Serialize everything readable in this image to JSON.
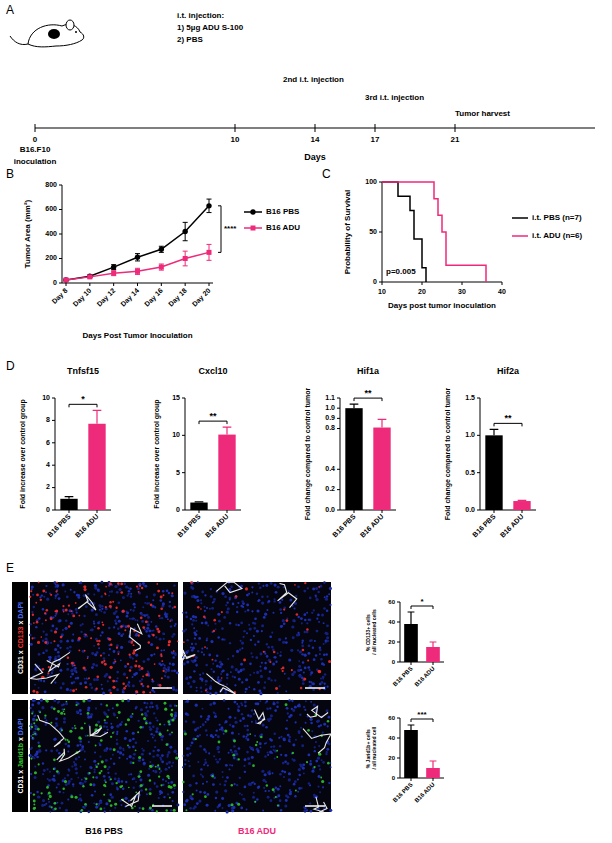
{
  "panel_labels": [
    "A",
    "B",
    "C",
    "D",
    "E"
  ],
  "timeline": {
    "xlim": [
      0,
      28
    ],
    "ticks": [
      0,
      10,
      14,
      17,
      21
    ],
    "axis_label": "Days",
    "events": [
      {
        "day": 0,
        "lines": [
          "B16.F10",
          "inoculation"
        ]
      },
      {
        "day": 10,
        "lines": [
          "i.t. injection:",
          "1) 5µg ADU S-100",
          "2) PBS"
        ]
      },
      {
        "day": 14,
        "lines": [
          "2nd i.t. injection"
        ]
      },
      {
        "day": 17,
        "lines": [
          "3rd i.t. injection"
        ]
      },
      {
        "day": 21,
        "lines": [
          "Tumor harvest"
        ]
      }
    ]
  },
  "images": {
    "rows": [
      {
        "parts": [
          "CD31",
          " x ",
          "CD133",
          " x ",
          "DAPI"
        ],
        "colors": [
          "#ffffff",
          "#ffffff",
          "#ff3030",
          "#ffffff",
          "#4a6cff"
        ]
      },
      {
        "parts": [
          "CD31",
          " x ",
          "Jarid1b",
          " x ",
          "DAPI"
        ],
        "colors": [
          "#ffffff",
          "#ffffff",
          "#30d030",
          "#ffffff",
          "#4a6cff"
        ]
      }
    ],
    "columns": [
      "B16 PBS",
      "B16 ADU"
    ],
    "column_colors": [
      "#000000",
      "#ee2a7b"
    ]
  },
  "chart_data": [
    {
      "type": "line",
      "y_label": "Tumor Area (mm²)",
      "x_label": "Days Post Tumor Inoculation",
      "categories": [
        "Day 8",
        "Day 10",
        "Day 12",
        "Day 14",
        "Day 16",
        "Day 18",
        "Day 20"
      ],
      "series": [
        {
          "name": "B16 PBS",
          "color": "#000000",
          "marker": "circle",
          "values": [
            25,
            55,
            130,
            210,
            275,
            420,
            630
          ],
          "errors": [
            5,
            10,
            20,
            30,
            25,
            75,
            55
          ]
        },
        {
          "name": "B16 ADU",
          "color": "#ee2a7b",
          "marker": "square",
          "values": [
            25,
            50,
            80,
            95,
            130,
            200,
            250
          ],
          "errors": [
            5,
            10,
            20,
            25,
            25,
            60,
            65
          ]
        }
      ],
      "ylim": [
        0,
        800
      ],
      "yticks": [
        0,
        200,
        400,
        600,
        800
      ],
      "annotations": [
        "****"
      ],
      "legend": "right"
    },
    {
      "type": "step",
      "y_label": "Probability of Survival",
      "x_label": "Days post tumor inoculation",
      "series": [
        {
          "name": "i.t. PBS (n=7)",
          "color": "#000000",
          "x": [
            10,
            14,
            17,
            18,
            20,
            21
          ],
          "values": [
            100,
            85.7,
            71.4,
            42.9,
            14.3,
            0
          ]
        },
        {
          "name": "i.t. ADU (n=6)",
          "color": "#ee2a7b",
          "x": [
            10,
            23,
            24,
            25,
            26,
            36
          ],
          "values": [
            100,
            83.3,
            66.7,
            50,
            16.7,
            0
          ]
        }
      ],
      "xlim": [
        10,
        40
      ],
      "xticks": [
        10,
        20,
        30,
        40
      ],
      "ylim": [
        0,
        100
      ],
      "yticks": [
        0,
        50,
        100
      ],
      "annotations": [
        "p=0.005"
      ],
      "legend": "right"
    },
    {
      "type": "bar",
      "title": "Tnfsf15",
      "y_label": "Fold increase over control group",
      "categories": [
        "B16 PBS",
        "B16 ADU"
      ],
      "values": [
        1,
        7.7
      ],
      "errors": [
        0.2,
        1.2
      ],
      "colors": [
        "#000000",
        "#ee2a7b"
      ],
      "ylim": [
        0,
        10
      ],
      "yticks": [
        0,
        2,
        4,
        6,
        8,
        10
      ],
      "annotations": [
        "*"
      ]
    },
    {
      "type": "bar",
      "title": "Cxcl10",
      "y_label": "Fold increase over control group",
      "categories": [
        "B16 PBS",
        "B16 ADU"
      ],
      "values": [
        1,
        10.1
      ],
      "errors": [
        0.1,
        1.0
      ],
      "colors": [
        "#000000",
        "#ee2a7b"
      ],
      "ylim": [
        0,
        15
      ],
      "yticks": [
        0,
        5,
        10,
        15
      ],
      "annotations": [
        "**"
      ]
    },
    {
      "type": "bar",
      "title": "Hif1a",
      "y_label": "Fold change compared to control tumor",
      "categories": [
        "B16 PBS",
        "B16 ADU"
      ],
      "values": [
        1.0,
        0.81
      ],
      "errors": [
        0.04,
        0.08
      ],
      "colors": [
        "#000000",
        "#ee2a7b"
      ],
      "ylim": [
        0,
        1.1
      ],
      "yticks": [
        {
          "value": 0,
          "label": "0.0"
        },
        0.2,
        0.4,
        0.8,
        0.9,
        {
          "value": 1,
          "label": "1.0"
        },
        1.1
      ],
      "annotations": [
        "**"
      ]
    },
    {
      "type": "bar",
      "title": "Hif2a",
      "y_label": "Fold change compared to control tumor",
      "categories": [
        "B16 PBS",
        "B16 ADU"
      ],
      "values": [
        1.0,
        0.12
      ],
      "errors": [
        0.08,
        0.01
      ],
      "colors": [
        "#000000",
        "#ee2a7b"
      ],
      "ylim": [
        0,
        1.5
      ],
      "yticks": [
        {
          "value": 0,
          "label": "0.0"
        },
        0.5,
        {
          "value": 1,
          "label": "1.0"
        },
        1.5
      ],
      "annotations": [
        "**"
      ]
    },
    {
      "type": "bar",
      "y_label": "% CD133+ cells / all nucleated cells",
      "categories": [
        "B16 PBS",
        "B16 ADU"
      ],
      "values": [
        38,
        15
      ],
      "errors": [
        12,
        5
      ],
      "colors": [
        "#000000",
        "#ee2a7b"
      ],
      "ylim": [
        0,
        60
      ],
      "yticks": [
        0,
        20,
        40,
        60
      ],
      "annotations": [
        "*"
      ]
    },
    {
      "type": "bar",
      "y_label": "% Jarid1b+ cells / all nucleated cell",
      "categories": [
        "B16 PBS",
        "B16 ADU"
      ],
      "values": [
        48,
        10
      ],
      "errors": [
        5,
        7
      ],
      "colors": [
        "#000000",
        "#ee2a7b"
      ],
      "ylim": [
        0,
        60
      ],
      "yticks": [
        0,
        20,
        40,
        60
      ],
      "annotations": [
        "***"
      ]
    }
  ]
}
